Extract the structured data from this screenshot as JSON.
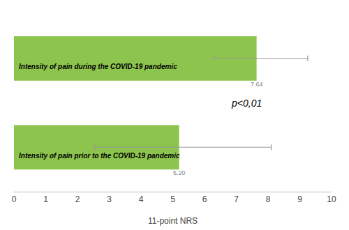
{
  "chart_data": {
    "type": "bar",
    "orientation": "horizontal",
    "categories": [
      "Intensity of pain during the COVID-19 pandemic",
      "Intensity of pain prior to the COVID-19 pandemic"
    ],
    "values": [
      7.64,
      5.2
    ],
    "value_labels": [
      "7.64",
      "5.20"
    ],
    "data_labels": true,
    "error_low": [
      6.3,
      2.55
    ],
    "error_high": [
      9.25,
      8.1
    ],
    "color": "#8dc44e",
    "xlabel": "11-point NRS",
    "xlim": [
      0,
      10
    ],
    "xticks": [
      0,
      1,
      2,
      3,
      4,
      5,
      6,
      7,
      8,
      9,
      10
    ],
    "annotations": [
      {
        "text": "p<0,01"
      }
    ],
    "grid": false,
    "tick_labels": "x"
  }
}
